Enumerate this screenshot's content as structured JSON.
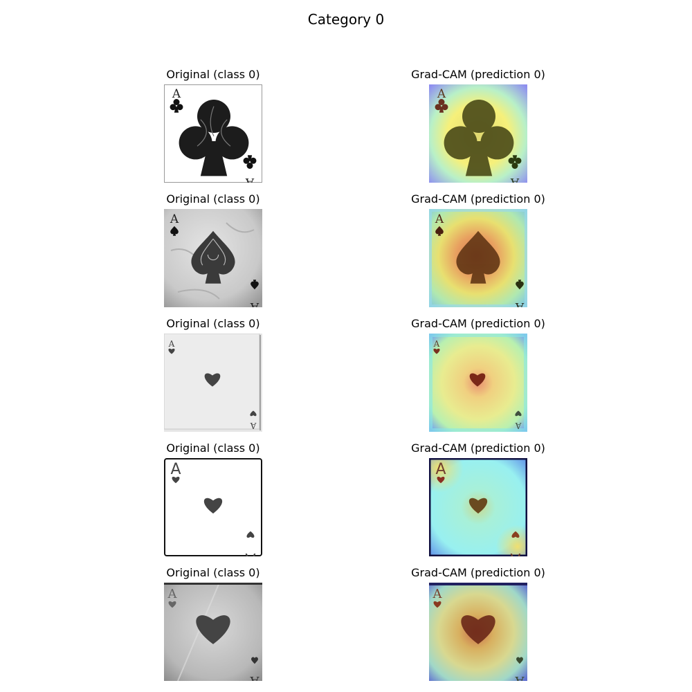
{
  "figure": {
    "title": "Category 0",
    "rows": [
      {
        "original_title": "Original (class 0)",
        "gradcam_title": "Grad-CAM (prediction 0)",
        "card": {
          "rank": "A",
          "suit": "club",
          "style": "ornate-white"
        }
      },
      {
        "original_title": "Original (class 0)",
        "gradcam_title": "Grad-CAM (prediction 0)",
        "card": {
          "rank": "A",
          "suit": "spade",
          "style": "textured-gray"
        }
      },
      {
        "original_title": "Original (class 0)",
        "gradcam_title": "Grad-CAM (prediction 0)",
        "card": {
          "rank": "A",
          "suit": "heart",
          "style": "light-gray"
        }
      },
      {
        "original_title": "Original (class 0)",
        "gradcam_title": "Grad-CAM (prediction 0)",
        "card": {
          "rank": "A",
          "suit": "heart",
          "style": "white-bordered"
        }
      },
      {
        "original_title": "Original (class 0)",
        "gradcam_title": "Grad-CAM (prediction 0)",
        "card": {
          "rank": "A",
          "suit": "heart",
          "style": "dark-gray"
        }
      }
    ]
  },
  "colors": {
    "heatmap_low": "#3a3aff",
    "heatmap_mid": "#7fffd4",
    "heatmap_high_1": "#ffff66",
    "heatmap_high_2": "#e8141e"
  }
}
